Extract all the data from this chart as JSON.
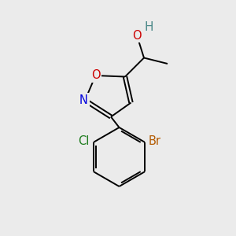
{
  "background_color": "#ebebeb",
  "bond_color": "#000000",
  "atom_colors": {
    "O_hydroxyl": "#cc0000",
    "O_ring": "#cc0000",
    "N": "#0000dd",
    "Cl": "#1a7a1a",
    "Br": "#b35a00",
    "H": "#4a8888",
    "C": "#000000"
  },
  "font_size": 10.5,
  "lw": 1.4
}
